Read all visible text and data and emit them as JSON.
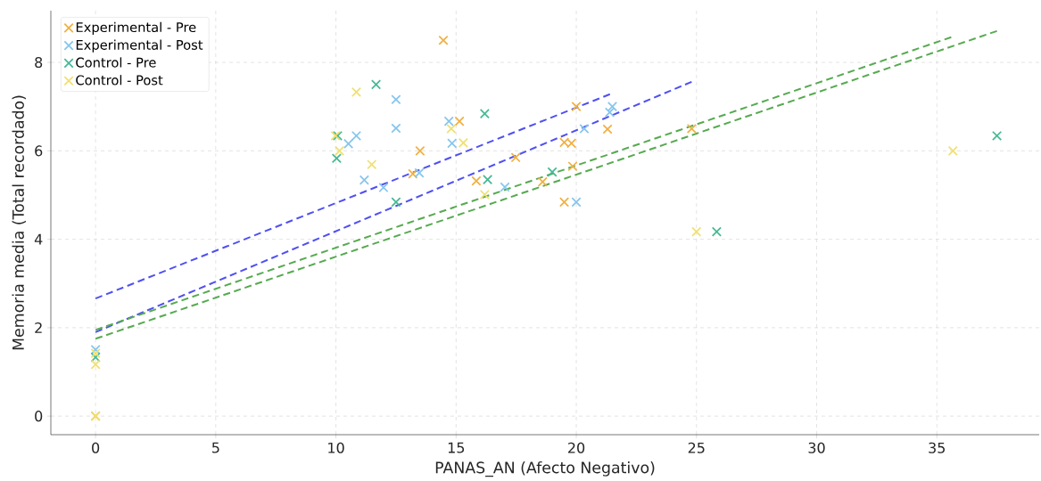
{
  "chart_data": {
    "type": "scatter",
    "xlabel": "PANAS_AN (Afecto Negativo)",
    "ylabel": "Memoria media (Total recordado)",
    "xlim": [
      -1.86,
      39.26
    ],
    "ylim": [
      -0.42,
      9.17
    ],
    "xticks": [
      0,
      5,
      10,
      15,
      20,
      25,
      30,
      35
    ],
    "yticks": [
      0,
      2,
      4,
      6,
      8
    ],
    "grid": true,
    "legend": "top left",
    "marker": "cross",
    "series": [
      {
        "name": "Experimental - Pre",
        "color": "#f0b042",
        "x": [
          0,
          14.47,
          13.5,
          13.2,
          15.14,
          15.84,
          17.48,
          18.6,
          19.5,
          19.8,
          19.85,
          19.5,
          20.0,
          21.3,
          24.8
        ],
        "values": [
          0,
          8.5,
          6.0,
          5.48,
          6.67,
          5.32,
          5.85,
          5.3,
          6.19,
          6.17,
          5.65,
          4.84,
          7.0,
          6.49,
          6.5
        ]
      },
      {
        "name": "Experimental - Post",
        "color": "#85c5ee",
        "x": [
          0,
          12.5,
          12.5,
          10.85,
          10.52,
          11.18,
          11.98,
          13.47,
          14.7,
          14.83,
          17.03,
          20.0,
          20.33,
          21.39,
          21.5
        ],
        "values": [
          1.5,
          7.16,
          6.51,
          6.34,
          6.16,
          5.34,
          5.17,
          5.5,
          6.67,
          6.17,
          5.18,
          4.84,
          6.5,
          6.87,
          7.0
        ]
      },
      {
        "name": "Control - Pre",
        "color": "#45b894",
        "x": [
          0,
          11.67,
          10.07,
          10.03,
          12.5,
          16.19,
          16.31,
          19.0,
          25.84,
          37.5
        ],
        "values": [
          1.33,
          7.5,
          6.34,
          5.83,
          4.84,
          6.84,
          5.35,
          5.52,
          4.17,
          6.34
        ]
      },
      {
        "name": "Control - Post",
        "color": "#f0e070",
        "x": [
          0,
          0,
          0,
          10.85,
          9.98,
          10.15,
          11.49,
          14.8,
          15.3,
          16.19,
          25.0,
          35.67
        ],
        "values": [
          0,
          1.42,
          1.17,
          7.33,
          6.34,
          6.0,
          5.69,
          6.5,
          6.18,
          5.01,
          4.17,
          6.0
        ]
      },
      {
        "type": "line",
        "line_style": "dashed",
        "marker": "none",
        "color": "#5050f2",
        "x": [
          0,
          24.8
        ],
        "values": [
          1.9,
          7.56
        ]
      },
      {
        "type": "line",
        "line_style": "dashed",
        "marker": "none",
        "color": "#5050f2",
        "x": [
          0,
          21.4
        ],
        "values": [
          2.66,
          7.28
        ]
      },
      {
        "type": "line",
        "line_style": "dashed",
        "marker": "none",
        "color": "#56aa50",
        "x": [
          0,
          37.5
        ],
        "values": [
          1.75,
          8.71
        ]
      },
      {
        "type": "line",
        "line_style": "dashed",
        "marker": "none",
        "color": "#56aa50",
        "x": [
          0,
          35.6
        ],
        "values": [
          1.95,
          8.57
        ]
      }
    ]
  }
}
